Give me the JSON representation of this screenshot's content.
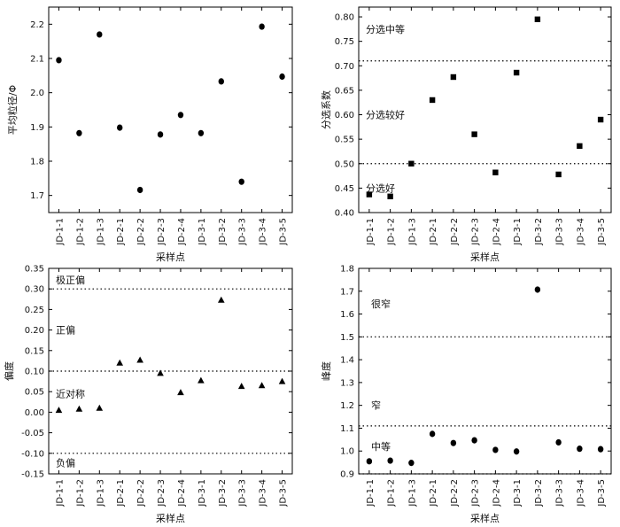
{
  "chart_data": [
    {
      "type": "scatter",
      "marker": "circle",
      "xlabel": "采样点",
      "ylabel": "平均粒径/Φ",
      "categories": [
        "JD-1-1",
        "JD-1-2",
        "JD-1-3",
        "JD-2-1",
        "JD-2-2",
        "JD-2-3",
        "JD-2-4",
        "JD-3-1",
        "JD-3-2",
        "JD-3-3",
        "JD-3-4",
        "JD-3-5"
      ],
      "values": [
        2.095,
        1.882,
        2.17,
        1.898,
        1.716,
        1.878,
        1.935,
        1.882,
        2.033,
        1.74,
        2.193,
        2.047
      ],
      "ylim": [
        1.65,
        2.25
      ],
      "yticks": [
        1.7,
        1.8,
        1.9,
        2.0,
        2.1,
        2.2
      ],
      "ytick_labels": [
        "1.7",
        "1.8",
        "1.9",
        "2.0",
        "2.1",
        "2.2"
      ],
      "threshold_lines": [],
      "zone_labels": []
    },
    {
      "type": "scatter",
      "marker": "square",
      "xlabel": "采样点",
      "ylabel": "分选系数",
      "categories": [
        "JD-1-1",
        "JD-1-2",
        "JD-1-3",
        "JD-2-1",
        "JD-2-2",
        "JD-2-3",
        "JD-2-4",
        "JD-3-1",
        "JD-3-2",
        "JD-3-3",
        "JD-3-4",
        "JD-3-5"
      ],
      "values": [
        0.437,
        0.433,
        0.5,
        0.63,
        0.677,
        0.56,
        0.482,
        0.686,
        0.795,
        0.478,
        0.536,
        0.59
      ],
      "ylim": [
        0.4,
        0.82
      ],
      "yticks": [
        0.4,
        0.45,
        0.5,
        0.55,
        0.6,
        0.65,
        0.7,
        0.75,
        0.8
      ],
      "ytick_labels": [
        "0.40",
        "0.45",
        "0.50",
        "0.55",
        "0.60",
        "0.65",
        "0.70",
        "0.75",
        "0.80"
      ],
      "threshold_lines": [
        0.71,
        0.5
      ],
      "zone_labels": [
        {
          "text": "分选中等",
          "y": 0.775
        },
        {
          "text": "分选较好",
          "y": 0.6
        },
        {
          "text": "分选好",
          "y": 0.45
        }
      ]
    },
    {
      "type": "scatter",
      "marker": "triangle",
      "xlabel": "采样点",
      "ylabel": "偏度",
      "categories": [
        "JD-1-1",
        "JD-1-2",
        "JD-1-3",
        "JD-2-1",
        "JD-2-2",
        "JD-2-3",
        "JD-2-4",
        "JD-3-1",
        "JD-3-2",
        "JD-3-3",
        "JD-3-4",
        "JD-3-5"
      ],
      "values": [
        0.005,
        0.008,
        0.01,
        0.12,
        0.127,
        0.095,
        0.048,
        0.077,
        0.273,
        0.063,
        0.065,
        0.075
      ],
      "ylim": [
        -0.15,
        0.35
      ],
      "yticks": [
        -0.15,
        -0.1,
        -0.05,
        0.0,
        0.05,
        0.1,
        0.15,
        0.2,
        0.25,
        0.3,
        0.35
      ],
      "ytick_labels": [
        "-0.15",
        "-0.10",
        "-0.05",
        "0.00",
        "0.05",
        "0.10",
        "0.15",
        "0.20",
        "0.25",
        "0.30",
        "0.35"
      ],
      "threshold_lines": [
        0.3,
        0.1,
        -0.1
      ],
      "zone_labels": [
        {
          "text": "极正偏",
          "y": 0.322
        },
        {
          "text": "正偏",
          "y": 0.2
        },
        {
          "text": "近对称",
          "y": 0.045
        },
        {
          "text": "负偏",
          "y": -0.123
        }
      ]
    },
    {
      "type": "scatter",
      "marker": "circle",
      "xlabel": "采样点",
      "ylabel": "峰度",
      "categories": [
        "JD-1-1",
        "JD-1-2",
        "JD-1-3",
        "JD-2-1",
        "JD-2-2",
        "JD-2-3",
        "JD-2-4",
        "JD-3-1",
        "JD-3-2",
        "JD-3-3",
        "JD-3-4",
        "JD-3-5"
      ],
      "values": [
        0.955,
        0.958,
        0.948,
        1.075,
        1.035,
        1.047,
        1.005,
        0.998,
        1.707,
        1.038,
        1.01,
        1.008
      ],
      "ylim": [
        0.9,
        1.8
      ],
      "yticks": [
        0.9,
        1.0,
        1.1,
        1.2,
        1.3,
        1.4,
        1.5,
        1.6,
        1.7,
        1.8
      ],
      "ytick_labels": [
        "0.9",
        "1.0",
        "1.1",
        "1.2",
        "1.3",
        "1.4",
        "1.5",
        "1.6",
        "1.7",
        "1.8"
      ],
      "threshold_lines": [
        1.5,
        1.11,
        0.9
      ],
      "zone_labels": [
        {
          "text": "很窄",
          "y": 1.645
        },
        {
          "text": "窄",
          "y": 1.2
        },
        {
          "text": "中等",
          "y": 1.02
        }
      ]
    }
  ]
}
